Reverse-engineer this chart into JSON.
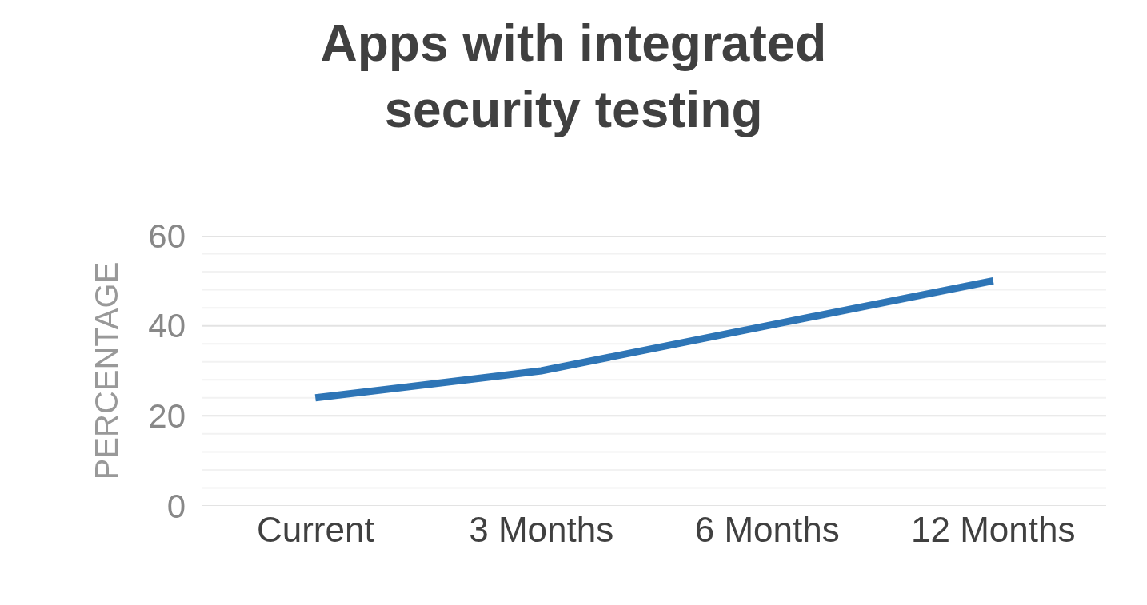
{
  "chart_data": {
    "type": "line",
    "title": "Apps with integrated security testing",
    "ylabel": "PERCENTAGE",
    "categories": [
      "Current",
      "3 Months",
      "6 Months",
      "12 Months"
    ],
    "series": [
      {
        "color": "#2e75b6",
        "values": [
          24,
          30,
          40,
          50
        ]
      }
    ],
    "ylim": [
      0,
      60
    ],
    "yticks": [
      0,
      {
        "value": 4,
        "label": null
      },
      {
        "value": 8,
        "label": null
      },
      {
        "value": 12,
        "label": null
      },
      {
        "value": 16,
        "label": null
      },
      20,
      {
        "value": 24,
        "label": null
      },
      {
        "value": 28,
        "label": null
      },
      {
        "value": 32,
        "label": null
      },
      {
        "value": 36,
        "label": null
      },
      40,
      {
        "value": 44,
        "label": null
      },
      {
        "value": 48,
        "label": null
      },
      {
        "value": 52,
        "label": null
      },
      {
        "value": 56,
        "label": null
      },
      60
    ],
    "grid": "y",
    "marker": "none",
    "line_style": "solid"
  }
}
